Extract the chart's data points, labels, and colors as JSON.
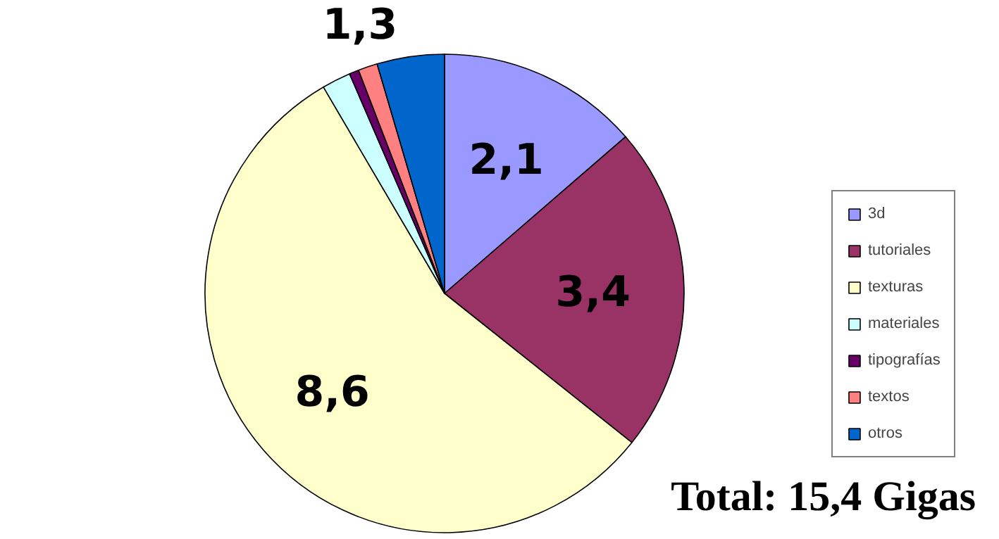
{
  "chart_data": {
    "type": "pie",
    "categories": [
      "3d",
      "tutoriales",
      "texturas",
      "materiales",
      "tipografías",
      "textos",
      "otros"
    ],
    "values": [
      2.1,
      3.4,
      8.6,
      0.3,
      0.1,
      0.2,
      0.7
    ],
    "colors": [
      "#9999ff",
      "#993366",
      "#ffffcc",
      "#ccffff",
      "#660066",
      "#ff8080",
      "#0066cc"
    ],
    "value_labels": [
      "2,1",
      "3,4",
      "8,6",
      null,
      null,
      null,
      null
    ],
    "annotations": [
      "1,3",
      "Total: 15,4 Gigas"
    ],
    "legend": "right"
  }
}
